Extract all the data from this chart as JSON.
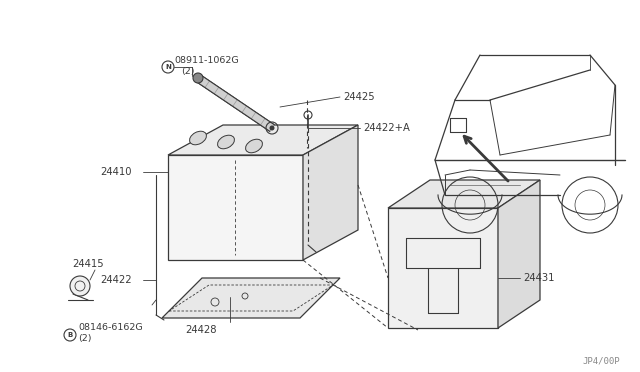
{
  "bg_color": "#ffffff",
  "dc": "#3a3a3a",
  "watermark": "JP4/00P",
  "parts": {
    "N_bolt": {
      "label": "N08911-1062G\n(2)"
    },
    "p24425": {
      "label": "24425"
    },
    "p24422A": {
      "label": "24422+A"
    },
    "p24410": {
      "label": "24410"
    },
    "p24422": {
      "label": "24422"
    },
    "p24431": {
      "label": "24431"
    },
    "p24415": {
      "label": "24415"
    },
    "p24428": {
      "label": "24428"
    },
    "B_bolt": {
      "label": "B08146-6162G\n(2)"
    }
  }
}
